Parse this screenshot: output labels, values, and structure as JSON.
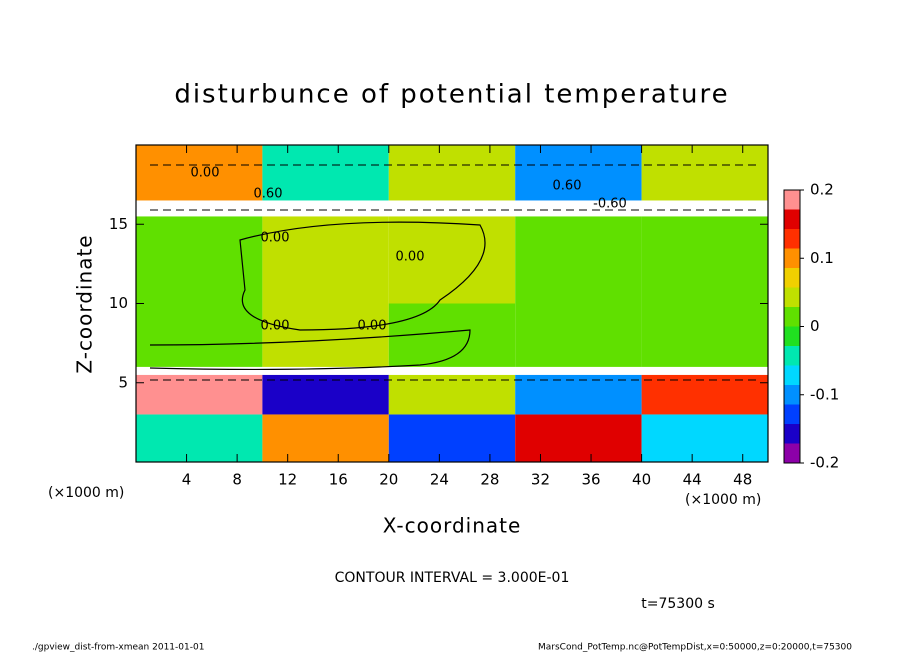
{
  "chart_data": {
    "type": "heatmap",
    "title": "disturbunce of potential temperature",
    "x_label": "X-coordinate",
    "y_label": "Z-coordinate",
    "x_unit": "(×1000 m)",
    "y_unit": "(×1000 m)",
    "xlim": [
      0,
      50
    ],
    "ylim": [
      0,
      20
    ],
    "xticks": [
      4,
      8,
      12,
      16,
      20,
      24,
      28,
      32,
      36,
      40,
      44,
      48
    ],
    "yticks": [
      5,
      10,
      15
    ],
    "field": {
      "x": [
        0,
        10,
        20,
        30,
        40,
        50
      ],
      "z": [
        0,
        3,
        5.5,
        6,
        10,
        15.5,
        16.5,
        20
      ],
      "values": [
        [
          -0.05,
          0.1,
          -0.12,
          0.15,
          -0.08
        ],
        [
          0.18,
          -0.15,
          0.05,
          -0.1,
          0.12
        ],
        [
          0.25,
          0.25,
          0.25,
          0.25,
          0.25
        ],
        [
          0.02,
          0.03,
          0.02,
          0.01,
          0.02
        ],
        [
          0.01,
          0.03,
          0.03,
          0.01,
          0.01
        ],
        [
          -0.25,
          -0.25,
          -0.25,
          -0.25,
          -0.25
        ],
        [
          0.1,
          -0.05,
          0.05,
          -0.1,
          0.05
        ]
      ]
    },
    "colorbar": {
      "lim": [
        -0.2,
        0.2
      ],
      "ticks": [
        -0.2,
        -0.1,
        0,
        0.1,
        0.2
      ],
      "colors": [
        "#8c00a8",
        "#1a00c8",
        "#0040ff",
        "#0090ff",
        "#00d8ff",
        "#00e8b0",
        "#20e020",
        "#60e000",
        "#c0e000",
        "#f0d000",
        "#ff9000",
        "#ff3000",
        "#e00000",
        "#ff9090"
      ],
      "out_color": "#ffffff"
    },
    "contour_labels": [
      "0.00",
      "0.60",
      "0.00",
      "-0.60",
      "0.00",
      "0.00",
      "0.00",
      "0.60"
    ],
    "contour_interval": "CONTOUR INTERVAL = 3.000E-01",
    "time": "t=75300 s",
    "footer_left": "./gpview_dist-from-xmean  2011-01-01",
    "footer_right": "MarsCond_PotTemp.nc@PotTempDist,x=0:50000,z=0:20000,t=75300"
  }
}
